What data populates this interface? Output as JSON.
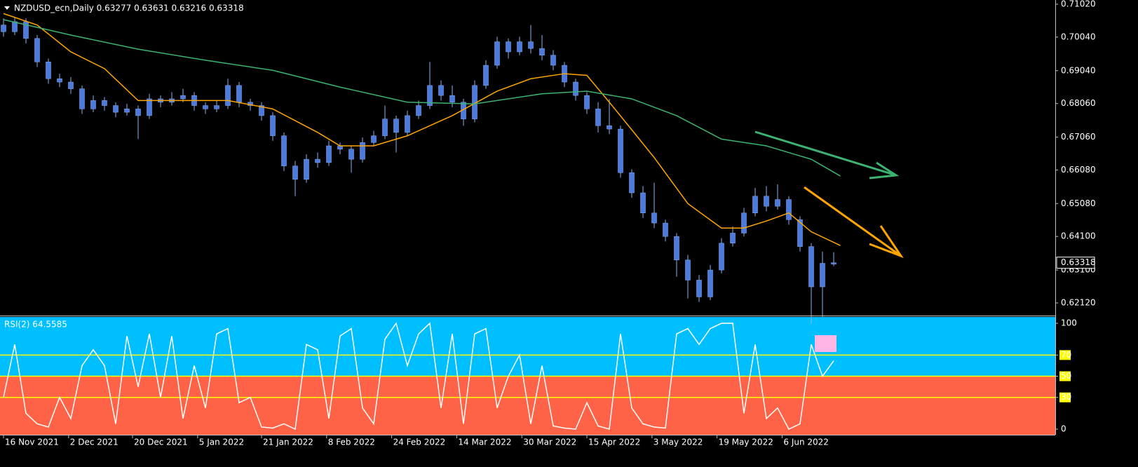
{
  "chart_data": {
    "type": "candlestick",
    "title": "NZDUSD_ecn,Daily  0.63277 0.63631 0.63216 0.63318",
    "xlim": [
      -0.3125,
      93.75
    ],
    "xticks": [
      {
        "value": 0,
        "label": "16 Nov 2021"
      },
      {
        "value": 5.8,
        "label": "2 Dec 2021"
      },
      {
        "value": 11.5,
        "label": "20 Dec 2021"
      },
      {
        "value": 17.3,
        "label": "5 Jan 2022"
      },
      {
        "value": 23,
        "label": "21 Jan 2022"
      },
      {
        "value": 28.8,
        "label": "8 Feb 2022"
      },
      {
        "value": 34.6,
        "label": "24 Feb 2022"
      },
      {
        "value": 40.4,
        "label": "14 Mar 2022"
      },
      {
        "value": 46.2,
        "label": "30 Mar 2022"
      },
      {
        "value": 52,
        "label": "15 Apr 2022"
      },
      {
        "value": 57.8,
        "label": "3 May 2022"
      },
      {
        "value": 63.6,
        "label": "19 May 2022"
      },
      {
        "value": 69.4,
        "label": "6 Jun 2022"
      }
    ],
    "ylim": [
      0.61744,
      0.71145
    ],
    "yticks": [
      {
        "value": 0.7102,
        "label": "0.71020"
      },
      {
        "value": 0.7004,
        "label": "0.70040"
      },
      {
        "value": 0.6904,
        "label": "0.69040"
      },
      {
        "value": 0.6806,
        "label": "0.68060"
      },
      {
        "value": 0.6706,
        "label": "0.67060"
      },
      {
        "value": 0.6608,
        "label": "0.66080"
      },
      {
        "value": 0.6508,
        "label": "0.65080"
      },
      {
        "value": 0.641,
        "label": "0.64100"
      },
      {
        "value": 0.631,
        "label": "0.63100"
      },
      {
        "value": 0.6212,
        "label": "0.62120"
      }
    ],
    "last_price": {
      "value": 0.63318,
      "label": "0.63318"
    },
    "candle_color": "#4a7be0",
    "wick_color": "#8fb0f0",
    "candles": [
      [
        0.704,
        0.706,
        0.7005,
        0.702
      ],
      [
        0.702,
        0.7065,
        0.701,
        0.705
      ],
      [
        0.705,
        0.706,
        0.6985,
        0.7
      ],
      [
        0.7,
        0.701,
        0.6915,
        0.693
      ],
      [
        0.693,
        0.694,
        0.6865,
        0.688
      ],
      [
        0.688,
        0.6895,
        0.6855,
        0.687
      ],
      [
        0.687,
        0.6885,
        0.6835,
        0.685
      ],
      [
        0.685,
        0.686,
        0.6775,
        0.679
      ],
      [
        0.679,
        0.683,
        0.678,
        0.6815
      ],
      [
        0.6815,
        0.6825,
        0.6785,
        0.68
      ],
      [
        0.68,
        0.681,
        0.6765,
        0.678
      ],
      [
        0.678,
        0.6805,
        0.677,
        0.679
      ],
      [
        0.679,
        0.68,
        0.67,
        0.677
      ],
      [
        0.677,
        0.6835,
        0.676,
        0.682
      ],
      [
        0.682,
        0.683,
        0.6795,
        0.681
      ],
      [
        0.681,
        0.684,
        0.68,
        0.682
      ],
      [
        0.682,
        0.685,
        0.681,
        0.683
      ],
      [
        0.683,
        0.684,
        0.6785,
        0.68
      ],
      [
        0.68,
        0.681,
        0.6775,
        0.679
      ],
      [
        0.679,
        0.6815,
        0.678,
        0.68
      ],
      [
        0.68,
        0.688,
        0.679,
        0.686
      ],
      [
        0.686,
        0.687,
        0.6795,
        0.681
      ],
      [
        0.681,
        0.682,
        0.6785,
        0.68
      ],
      [
        0.68,
        0.681,
        0.6755,
        0.677
      ],
      [
        0.677,
        0.678,
        0.6695,
        0.671
      ],
      [
        0.671,
        0.672,
        0.6605,
        0.662
      ],
      [
        0.662,
        0.6635,
        0.653,
        0.658
      ],
      [
        0.658,
        0.6655,
        0.657,
        0.664
      ],
      [
        0.664,
        0.666,
        0.6615,
        0.663
      ],
      [
        0.663,
        0.6695,
        0.662,
        0.668
      ],
      [
        0.668,
        0.669,
        0.6655,
        0.667
      ],
      [
        0.667,
        0.668,
        0.66,
        0.664
      ],
      [
        0.664,
        0.6705,
        0.663,
        0.669
      ],
      [
        0.669,
        0.6725,
        0.668,
        0.671
      ],
      [
        0.671,
        0.68,
        0.67,
        0.676
      ],
      [
        0.676,
        0.677,
        0.666,
        0.672
      ],
      [
        0.672,
        0.6785,
        0.671,
        0.677
      ],
      [
        0.677,
        0.6815,
        0.676,
        0.68
      ],
      [
        0.68,
        0.693,
        0.679,
        0.686
      ],
      [
        0.686,
        0.6875,
        0.6815,
        0.683
      ],
      [
        0.683,
        0.686,
        0.6795,
        0.681
      ],
      [
        0.681,
        0.682,
        0.674,
        0.676
      ],
      [
        0.676,
        0.6875,
        0.675,
        0.686
      ],
      [
        0.686,
        0.6935,
        0.685,
        0.692
      ],
      [
        0.692,
        0.7005,
        0.691,
        0.699
      ],
      [
        0.699,
        0.7,
        0.694,
        0.696
      ],
      [
        0.696,
        0.7005,
        0.695,
        0.699
      ],
      [
        0.699,
        0.704,
        0.6955,
        0.697
      ],
      [
        0.697,
        0.701,
        0.6935,
        0.695
      ],
      [
        0.695,
        0.6965,
        0.6905,
        0.692
      ],
      [
        0.692,
        0.693,
        0.6855,
        0.687
      ],
      [
        0.687,
        0.688,
        0.6815,
        0.683
      ],
      [
        0.683,
        0.684,
        0.6775,
        0.679
      ],
      [
        0.679,
        0.681,
        0.672,
        0.674
      ],
      [
        0.674,
        0.682,
        0.6715,
        0.673
      ],
      [
        0.673,
        0.674,
        0.6585,
        0.66
      ],
      [
        0.66,
        0.661,
        0.6525,
        0.654
      ],
      [
        0.654,
        0.656,
        0.6465,
        0.648
      ],
      [
        0.648,
        0.657,
        0.6435,
        0.645
      ],
      [
        0.645,
        0.646,
        0.6395,
        0.641
      ],
      [
        0.641,
        0.642,
        0.629,
        0.634
      ],
      [
        0.634,
        0.6355,
        0.6225,
        0.628
      ],
      [
        0.628,
        0.6295,
        0.6215,
        0.623
      ],
      [
        0.623,
        0.6325,
        0.622,
        0.631
      ],
      [
        0.631,
        0.6405,
        0.63,
        0.639
      ],
      [
        0.639,
        0.644,
        0.638,
        0.642
      ],
      [
        0.642,
        0.6495,
        0.641,
        0.648
      ],
      [
        0.648,
        0.6555,
        0.647,
        0.653
      ],
      [
        0.653,
        0.656,
        0.6485,
        0.65
      ],
      [
        0.65,
        0.6565,
        0.649,
        0.652
      ],
      [
        0.652,
        0.653,
        0.6445,
        0.646
      ],
      [
        0.646,
        0.647,
        0.6365,
        0.638
      ],
      [
        0.638,
        0.639,
        0.615,
        0.626
      ],
      [
        0.626,
        0.6365,
        0.617,
        0.633
      ],
      [
        0.63277,
        0.63631,
        0.63216,
        0.63318
      ]
    ],
    "lines": [
      {
        "color": "#ffa500",
        "x": [
          0,
          3,
          6,
          9,
          12,
          16,
          20,
          24,
          28,
          30,
          33,
          36,
          40,
          44,
          47,
          50,
          52,
          54,
          56,
          58,
          61,
          64,
          66,
          68,
          70,
          72,
          74.6
        ],
        "values": [
          0.7074,
          0.704,
          0.696,
          0.691,
          0.6815,
          0.6815,
          0.6815,
          0.679,
          0.672,
          0.668,
          0.668,
          0.671,
          0.677,
          0.6843,
          0.688,
          0.6895,
          0.689,
          0.681,
          0.6728,
          0.6645,
          0.6508,
          0.6435,
          0.6435,
          0.6456,
          0.648,
          0.6424,
          0.6383
        ]
      },
      {
        "color": "#3cb371",
        "x": [
          0,
          6,
          12,
          18,
          24,
          30,
          36,
          42,
          48,
          52,
          56,
          60,
          64,
          68,
          72,
          74.6
        ],
        "values": [
          0.7056,
          0.701,
          0.6968,
          0.6935,
          0.6905,
          0.6855,
          0.681,
          0.6805,
          0.6835,
          0.6843,
          0.682,
          0.677,
          0.67,
          0.668,
          0.664,
          0.659
        ]
      }
    ],
    "rsi": {
      "label": "RSI(2) 64.5585",
      "ylim": [
        -5.3,
        106
      ],
      "yticks": [
        100,
        70,
        50,
        30,
        0
      ],
      "levels": [
        70,
        50,
        30
      ],
      "split_level": 50,
      "upper_color": "#00bfff",
      "lower_color": "#ff6347",
      "level_color": "#ffff00",
      "line_color": "#ffffff",
      "values": [
        30,
        80,
        15,
        5,
        2,
        30,
        10,
        60,
        75,
        60,
        5,
        88,
        40,
        90,
        30,
        88,
        10,
        60,
        20,
        90,
        95,
        25,
        30,
        2,
        1,
        5,
        0,
        80,
        75,
        10,
        88,
        95,
        20,
        5,
        85,
        100,
        60,
        90,
        100,
        20,
        90,
        5,
        90,
        95,
        20,
        50,
        70,
        5,
        60,
        3,
        1,
        0,
        25,
        3,
        0,
        90,
        20,
        5,
        2,
        1,
        90,
        95,
        80,
        95,
        100,
        100,
        15,
        80,
        10,
        20,
        0,
        5,
        80,
        50,
        64.5585
      ]
    }
  }
}
